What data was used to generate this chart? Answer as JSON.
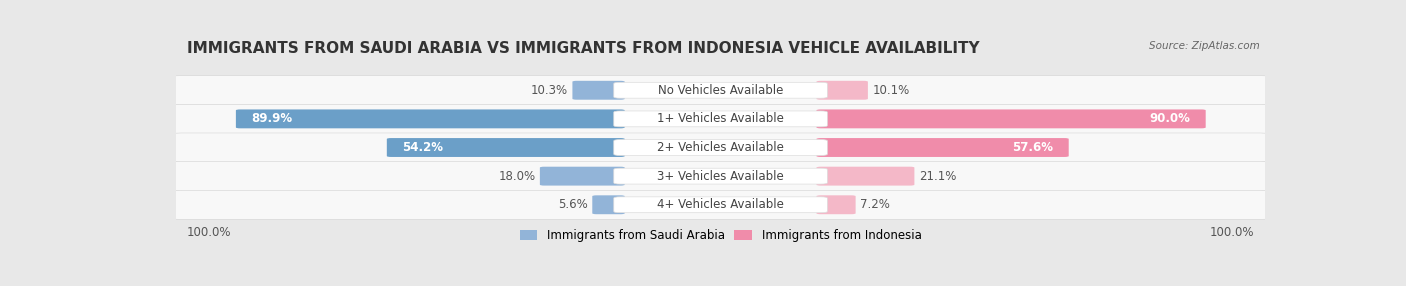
{
  "title": "IMMIGRANTS FROM SAUDI ARABIA VS IMMIGRANTS FROM INDONESIA VEHICLE AVAILABILITY",
  "source": "Source: ZipAtlas.com",
  "categories": [
    "No Vehicles Available",
    "1+ Vehicles Available",
    "2+ Vehicles Available",
    "3+ Vehicles Available",
    "4+ Vehicles Available"
  ],
  "saudi_values": [
    10.3,
    89.9,
    54.2,
    18.0,
    5.6
  ],
  "indonesia_values": [
    10.1,
    90.0,
    57.6,
    21.1,
    7.2
  ],
  "max_value": 100.0,
  "saudi_color": "#92b4d8",
  "saudi_color_dark": "#6b9fc8",
  "indonesia_color": "#f08caa",
  "indonesia_color_light": "#f4b8c8",
  "saudi_label": "Immigrants from Saudi Arabia",
  "indonesia_label": "Immigrants from Indonesia",
  "background_color": "#e8e8e8",
  "row_bg_color": "#f5f5f5",
  "title_fontsize": 11,
  "cat_fontsize": 8.5,
  "value_fontsize": 8.5,
  "footer_value": "100.0%"
}
